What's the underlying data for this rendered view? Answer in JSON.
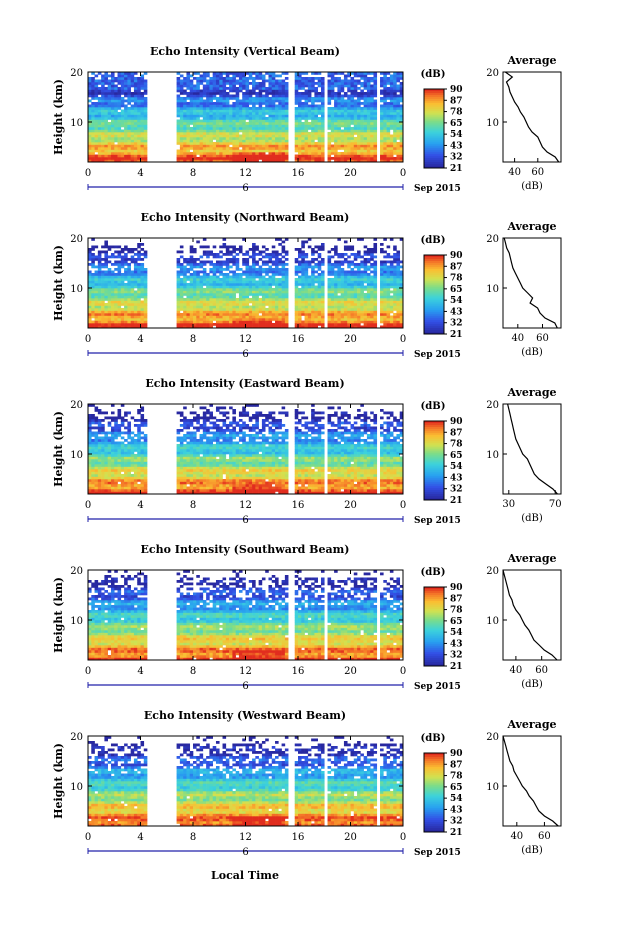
{
  "figure": {
    "date_label": "Sep 2015",
    "day_label": "6",
    "xlabel": "Local Time",
    "colorbar_unit": "(dB)",
    "colorbar_ticks": [
      "90",
      "87",
      "78",
      "65",
      "54",
      "43",
      "32",
      "21"
    ],
    "avg_title": "Average",
    "avg_xlabel": "(dB)"
  },
  "chart_data": [
    {
      "type": "heatmap",
      "title": "Echo Intensity (Vertical Beam)",
      "ylabel": "Height (km)",
      "xlim": [
        0,
        24
      ],
      "ylim": [
        2,
        20
      ],
      "xticks": [
        "0",
        "4",
        "8",
        "12",
        "16",
        "20",
        "0"
      ],
      "yticks": [
        "20",
        "10"
      ],
      "gaps": [
        [
          4.4,
          4.9
        ],
        [
          5.0,
          6.7
        ],
        [
          15.3,
          15.8
        ],
        [
          17.9,
          18.3
        ],
        [
          21.9,
          22.3
        ]
      ],
      "profile": {
        "xlim": [
          30,
          80
        ],
        "xticks": [
          "40",
          "60"
        ],
        "heights": [
          2,
          3,
          4,
          5,
          6,
          7,
          8,
          9,
          10,
          11,
          12,
          13,
          14,
          15,
          16,
          17,
          18,
          19,
          20
        ],
        "values": [
          78,
          75,
          68,
          64,
          62,
          60,
          55,
          52,
          50,
          48,
          45,
          43,
          40,
          38,
          36,
          35,
          33,
          38,
          32
        ]
      }
    },
    {
      "type": "heatmap",
      "title": "Echo Intensity (Northward Beam)",
      "ylabel": "Height (km)",
      "xlim": [
        0,
        24
      ],
      "ylim": [
        2,
        20
      ],
      "xticks": [
        "0",
        "4",
        "8",
        "12",
        "16",
        "20",
        "0"
      ],
      "yticks": [
        "20",
        "10"
      ],
      "gaps": [
        [
          4.4,
          4.9
        ],
        [
          5.0,
          6.7
        ],
        [
          15.3,
          15.8
        ],
        [
          17.9,
          18.3
        ],
        [
          21.9,
          22.3
        ]
      ],
      "profile": {
        "xlim": [
          28,
          75
        ],
        "xticks": [
          "40",
          "60"
        ],
        "heights": [
          2,
          3,
          4,
          5,
          6,
          7,
          8,
          9,
          10,
          11,
          12,
          13,
          14,
          15,
          16,
          17,
          18,
          19,
          20
        ],
        "values": [
          72,
          70,
          62,
          58,
          56,
          50,
          52,
          48,
          44,
          42,
          40,
          38,
          36,
          35,
          34,
          33,
          31,
          30,
          29
        ]
      }
    },
    {
      "type": "heatmap",
      "title": "Echo Intensity (Eastward Beam)",
      "ylabel": "Height (km)",
      "xlim": [
        0,
        24
      ],
      "ylim": [
        2,
        20
      ],
      "xticks": [
        "0",
        "4",
        "8",
        "12",
        "16",
        "20",
        "0"
      ],
      "yticks": [
        "20",
        "10"
      ],
      "gaps": [
        [
          4.4,
          4.9
        ],
        [
          5.0,
          6.7
        ],
        [
          15.3,
          15.8
        ],
        [
          17.9,
          18.3
        ],
        [
          21.9,
          22.3
        ]
      ],
      "profile": {
        "xlim": [
          25,
          75
        ],
        "xticks": [
          "30",
          "70"
        ],
        "heights": [
          2,
          3,
          4,
          5,
          6,
          7,
          8,
          9,
          10,
          11,
          12,
          13,
          14,
          15,
          16,
          17,
          18,
          19,
          20
        ],
        "values": [
          72,
          68,
          62,
          56,
          52,
          50,
          48,
          46,
          42,
          40,
          38,
          36,
          35,
          34,
          33,
          32,
          31,
          30,
          29
        ]
      }
    },
    {
      "type": "heatmap",
      "title": "Echo Intensity (Southward Beam)",
      "ylabel": "Height (km)",
      "xlim": [
        0,
        24
      ],
      "ylim": [
        2,
        20
      ],
      "xticks": [
        "0",
        "4",
        "8",
        "12",
        "16",
        "20",
        "0"
      ],
      "yticks": [
        "20",
        "10"
      ],
      "gaps": [
        [
          4.4,
          4.9
        ],
        [
          5.0,
          6.7
        ],
        [
          15.3,
          15.8
        ],
        [
          17.9,
          18.3
        ],
        [
          21.9,
          22.3
        ]
      ],
      "profile": {
        "xlim": [
          30,
          75
        ],
        "xticks": [
          "40",
          "60"
        ],
        "heights": [
          2,
          3,
          4,
          5,
          6,
          7,
          8,
          9,
          10,
          11,
          12,
          13,
          14,
          15,
          16,
          17,
          18,
          19,
          20
        ],
        "values": [
          72,
          68,
          62,
          58,
          54,
          52,
          50,
          47,
          45,
          43,
          40,
          38,
          37,
          35,
          34,
          33,
          32,
          31,
          30
        ]
      }
    },
    {
      "type": "heatmap",
      "title": "Echo Intensity (Westward Beam)",
      "ylabel": "Height (km)",
      "xlim": [
        0,
        24
      ],
      "ylim": [
        2,
        20
      ],
      "xticks": [
        "0",
        "4",
        "8",
        "12",
        "16",
        "20",
        "0"
      ],
      "yticks": [
        "20",
        "10"
      ],
      "gaps": [
        [
          4.4,
          4.9
        ],
        [
          5.0,
          6.7
        ],
        [
          15.3,
          15.8
        ],
        [
          17.9,
          18.3
        ],
        [
          21.9,
          22.3
        ]
      ],
      "profile": {
        "xlim": [
          30,
          72
        ],
        "xticks": [
          "40",
          "60"
        ],
        "heights": [
          2,
          3,
          4,
          5,
          6,
          7,
          8,
          9,
          10,
          11,
          12,
          13,
          14,
          15,
          16,
          17,
          18,
          19,
          20
        ],
        "values": [
          70,
          66,
          60,
          56,
          54,
          52,
          49,
          47,
          44,
          42,
          40,
          38,
          37,
          35,
          34,
          33,
          32,
          31,
          30
        ]
      }
    }
  ]
}
